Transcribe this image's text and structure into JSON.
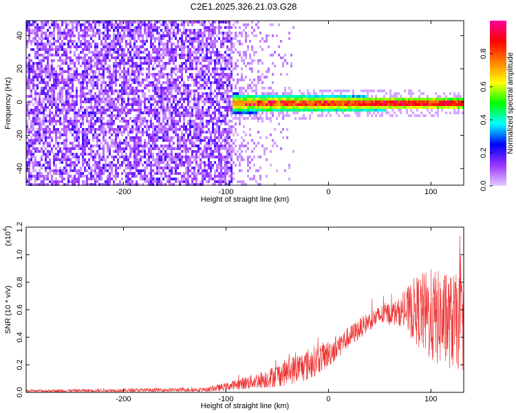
{
  "chart_data": [
    {
      "type": "heatmap",
      "title": "C2E1.2025.326.21.03.G28",
      "xlabel": "Height of straight line (km)",
      "ylabel": "Frequency (Hz)",
      "xlim": [
        -295,
        132
      ],
      "ylim": [
        -50,
        49
      ],
      "xticks": [
        -200,
        -100,
        0,
        100
      ],
      "xtick_labels": [
        "-200",
        "-100",
        "0",
        "100"
      ],
      "yticks": [
        -40,
        -20,
        0,
        20,
        40
      ],
      "ytick_labels": [
        "-40",
        "-20",
        "0",
        "20",
        "40"
      ],
      "colorbar": {
        "label": "Normalized spectral amplitude",
        "range": [
          0,
          1
        ],
        "ticks": [
          0.0,
          0.2,
          0.4,
          0.6,
          0.8
        ],
        "tick_labels": [
          "0.0",
          "0.2",
          "0.4",
          "0.6",
          "0.8"
        ],
        "colors": [
          "#e6ccff",
          "#9933ff",
          "#0000ff",
          "#00ffff",
          "#00ff00",
          "#ffff00",
          "#ff8000",
          "#ff0000",
          "#ff0099"
        ]
      },
      "regions": [
        {
          "name": "noise",
          "x_from": -295,
          "x_to": -95,
          "description_level": 0.15
        },
        {
          "name": "signal-band",
          "x_from": -95,
          "x_to": 132,
          "center_freq": 0,
          "peak_level": 0.95
        }
      ]
    },
    {
      "type": "line",
      "xlabel": "Height of straight line (km)",
      "ylabel": "SNR (10 * v/v)",
      "scale_label": "(x10",
      "scale_exp": "4",
      "scale_close": ")",
      "xlim": [
        -295,
        132
      ],
      "ylim": [
        0,
        1.2
      ],
      "xticks": [
        -200,
        -100,
        0,
        100
      ],
      "xtick_labels": [
        "-200",
        "-100",
        "0",
        "100"
      ],
      "yticks": [
        0.0,
        0.2,
        0.4,
        0.6,
        0.8,
        1.0,
        1.2
      ],
      "ytick_labels": [
        "0.0",
        "0.2",
        "0.4",
        "0.6",
        "0.8",
        "1.0",
        "1.2"
      ],
      "series": [
        {
          "name": "SNR",
          "color": "#ee3333",
          "envelope": [
            {
              "x": -295,
              "mean": 0.01,
              "spread": 0.01
            },
            {
              "x": -200,
              "mean": 0.015,
              "spread": 0.012
            },
            {
              "x": -120,
              "mean": 0.02,
              "spread": 0.015
            },
            {
              "x": -100,
              "mean": 0.04,
              "spread": 0.03
            },
            {
              "x": -80,
              "mean": 0.07,
              "spread": 0.05
            },
            {
              "x": -60,
              "mean": 0.1,
              "spread": 0.07
            },
            {
              "x": -40,
              "mean": 0.15,
              "spread": 0.1
            },
            {
              "x": -20,
              "mean": 0.2,
              "spread": 0.12
            },
            {
              "x": 0,
              "mean": 0.28,
              "spread": 0.1
            },
            {
              "x": 20,
              "mean": 0.4,
              "spread": 0.08
            },
            {
              "x": 40,
              "mean": 0.52,
              "spread": 0.07
            },
            {
              "x": 55,
              "mean": 0.57,
              "spread": 0.08
            },
            {
              "x": 70,
              "mean": 0.58,
              "spread": 0.1
            },
            {
              "x": 85,
              "mean": 0.6,
              "spread": 0.25
            },
            {
              "x": 100,
              "mean": 0.55,
              "spread": 0.35
            },
            {
              "x": 115,
              "mean": 0.52,
              "spread": 0.35
            },
            {
              "x": 132,
              "mean": 0.5,
              "spread": 0.35
            }
          ]
        }
      ]
    }
  ]
}
